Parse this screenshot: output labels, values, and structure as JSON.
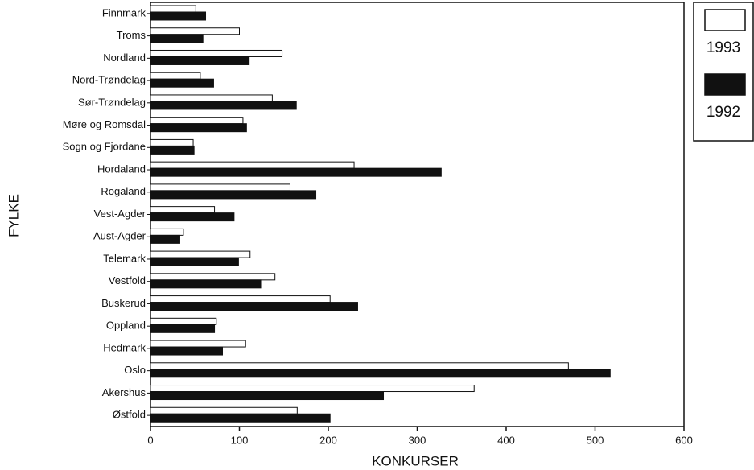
{
  "chart_data": {
    "type": "hbar",
    "xlabel": "KONKURSER",
    "ylabel": "FYLKE",
    "categories": [
      "Finnmark",
      "Troms",
      "Nordland",
      "Nord-Trøndelag",
      "Sør-Trøndelag",
      "Møre og Romsdal",
      "Sogn og Fjordane",
      "Hordaland",
      "Rogaland",
      "Vest-Agder",
      "Aust-Agder",
      "Telemark",
      "Vestfold",
      "Buskerud",
      "Oppland",
      "Hedmark",
      "Oslo",
      "Akershus",
      "Østfold"
    ],
    "series": [
      {
        "name": "1993",
        "color": "#ffffff",
        "values": [
          51,
          100,
          148,
          56,
          137,
          104,
          48,
          229,
          157,
          72,
          37,
          112,
          140,
          202,
          74,
          107,
          470,
          364,
          165
        ]
      },
      {
        "name": "1992",
        "color": "#111111",
        "values": [
          62,
          59,
          111,
          71,
          164,
          108,
          49,
          327,
          186,
          94,
          33,
          99,
          124,
          233,
          72,
          81,
          517,
          262,
          202
        ]
      }
    ],
    "xlim": [
      0,
      600
    ],
    "xticks": [
      0,
      100,
      200,
      300,
      400,
      500,
      600
    ],
    "legend": "upper right outside"
  }
}
